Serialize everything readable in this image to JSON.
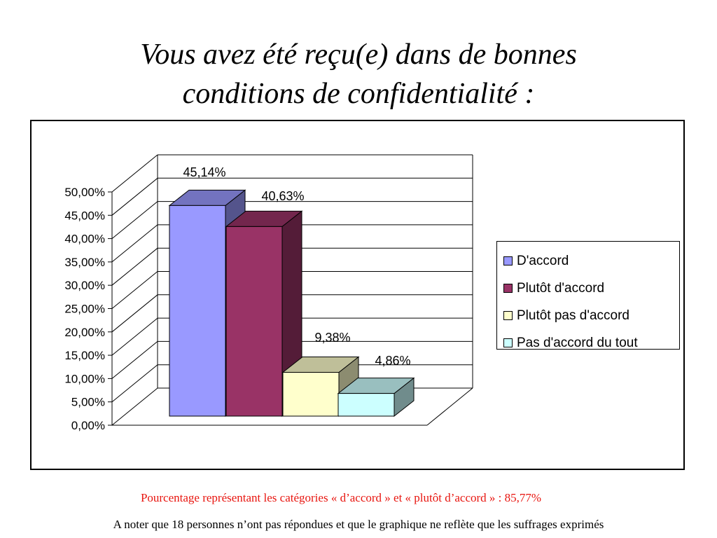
{
  "title": {
    "line1": "Vous avez été reçu(e) dans de bonnes",
    "line2": "conditions de confidentialité :"
  },
  "chart_data": {
    "type": "bar",
    "style": "3d-clustered",
    "categories": [
      ""
    ],
    "series": [
      {
        "name": "D'accord",
        "value": 45.14,
        "label": "45,14%",
        "color": "#9999ff"
      },
      {
        "name": "Plutôt d'accord",
        "value": 40.63,
        "label": "40,63%",
        "color": "#993366"
      },
      {
        "name": "Plutôt pas d'accord",
        "value": 9.38,
        "label": "9,38%",
        "color": "#ffffcc"
      },
      {
        "name": "Pas d'accord du tout",
        "value": 4.86,
        "label": "4,86%",
        "color": "#ccffff"
      }
    ],
    "y_ticks": [
      "0,00%",
      "5,00%",
      "10,00%",
      "15,00%",
      "20,00%",
      "25,00%",
      "30,00%",
      "35,00%",
      "40,00%",
      "45,00%",
      "50,00%"
    ],
    "ylim": [
      0,
      50
    ],
    "grid": true,
    "legend_position": "right"
  },
  "notes": {
    "summary": "Pourcentage représentant les catégories « d’accord » et « plutôt d’accord » : 85,77%",
    "footnote": "A noter que 18 personnes n’ont pas répondues et que le graphique ne reflète que les suffrages exprimés"
  }
}
